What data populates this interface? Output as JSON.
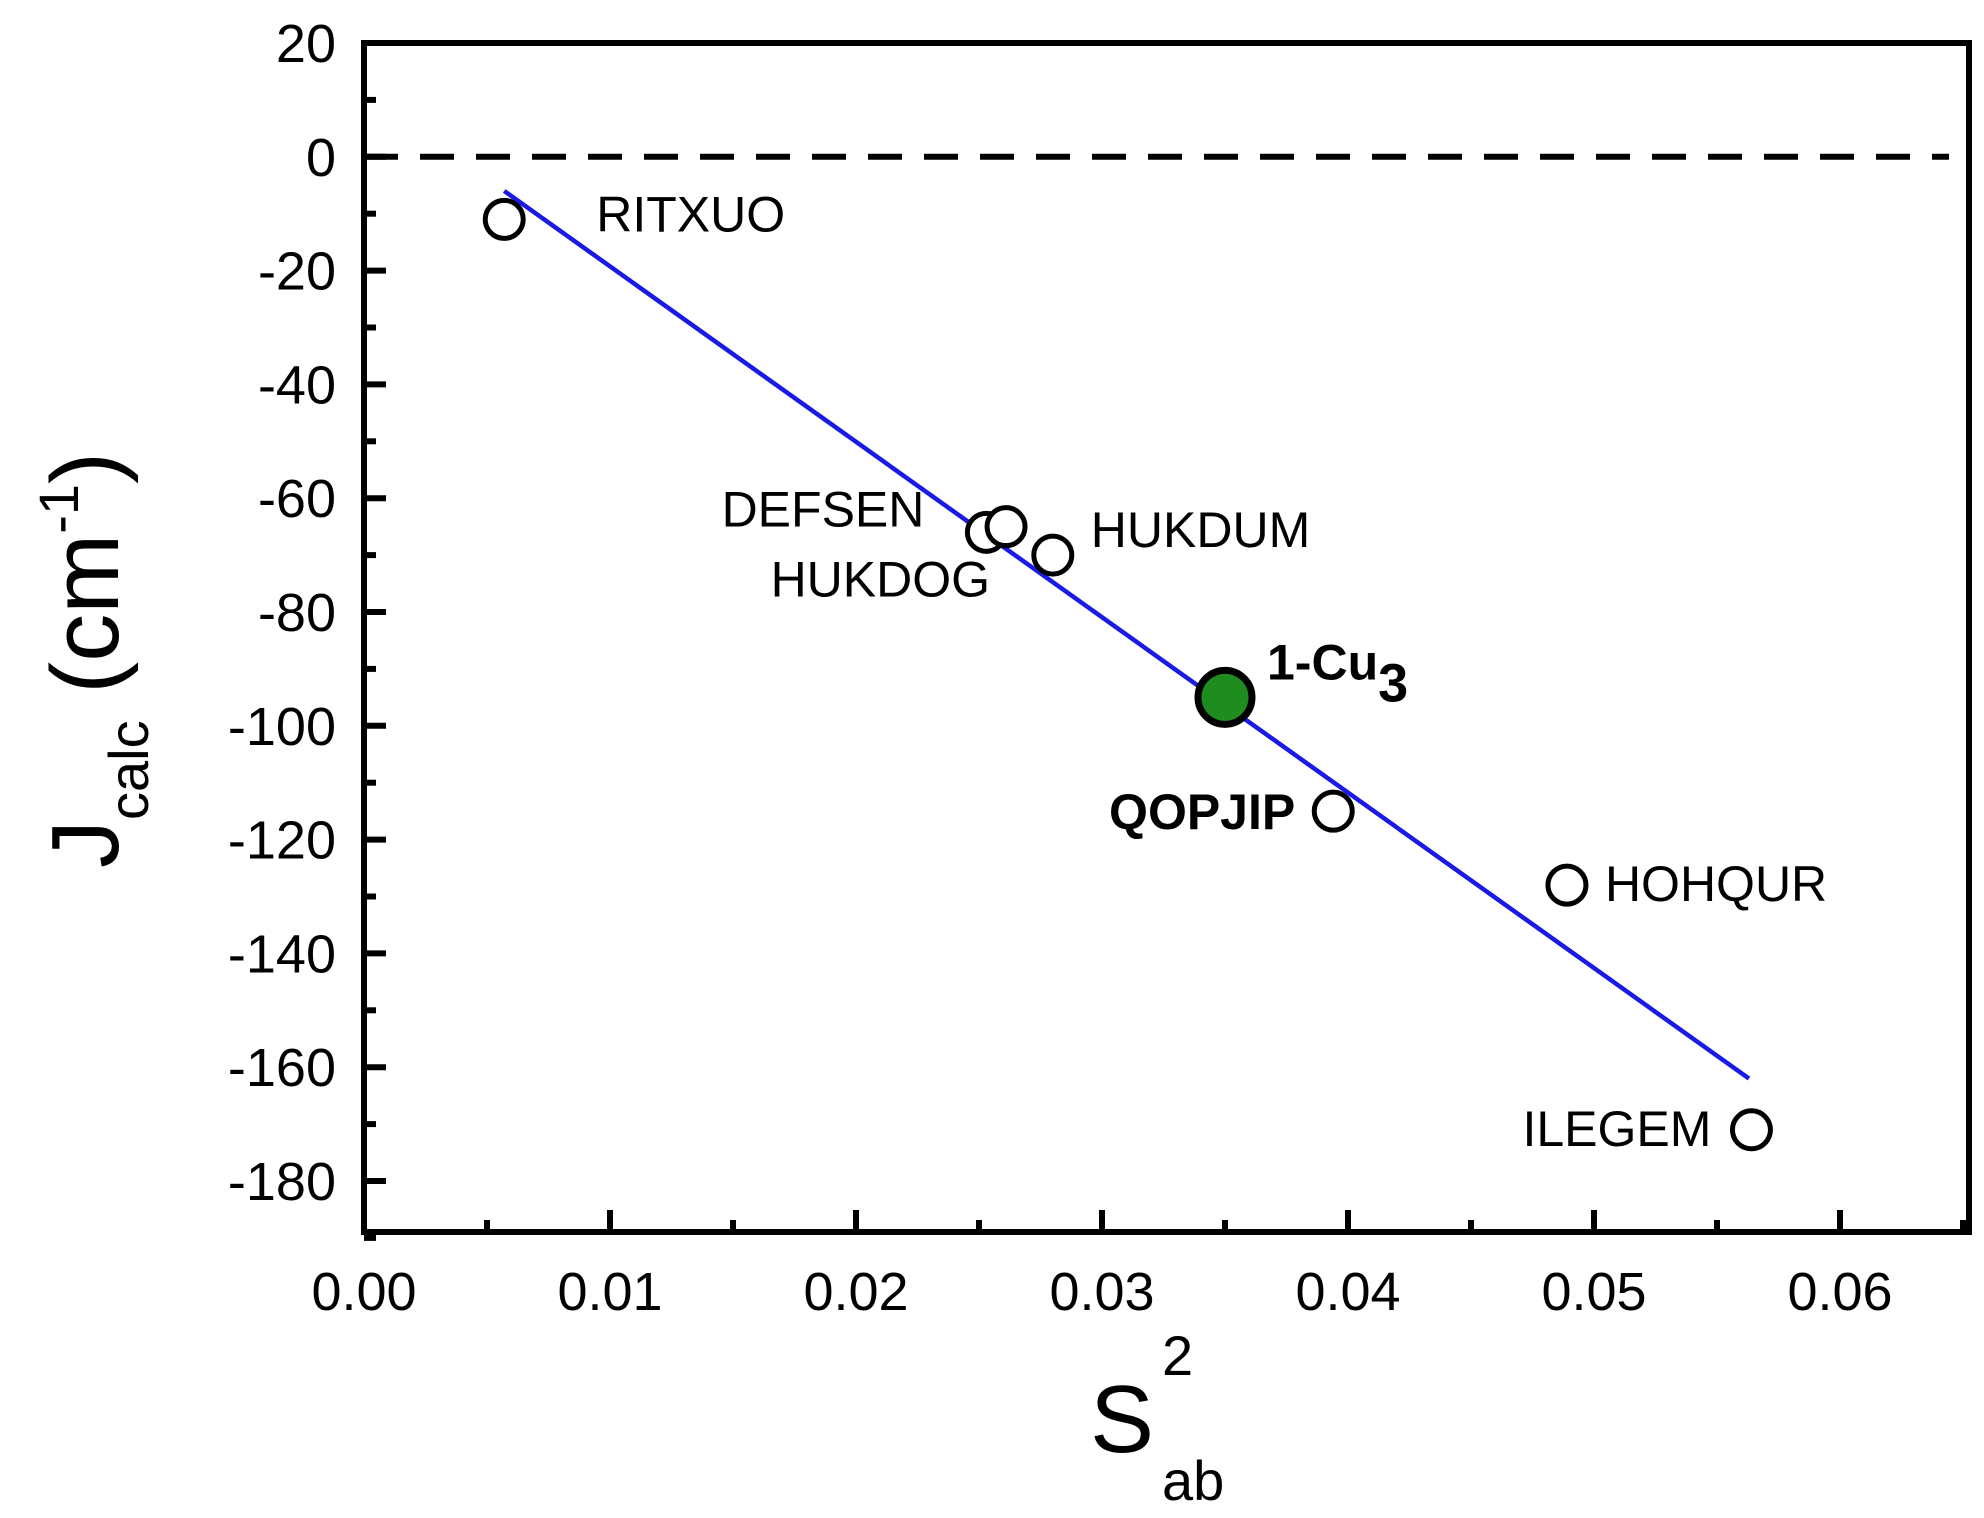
{
  "chart_data": {
    "type": "scatter",
    "title": "",
    "xlabel": {
      "main": "S",
      "sup": "2",
      "sub": "ab"
    },
    "ylabel": {
      "main": "J",
      "sub": "calc",
      "unit_open": " (cm",
      "unit_sup": "-1",
      "unit_close": ")"
    },
    "xlim": [
      0.0,
      0.065
    ],
    "ylim": [
      -190,
      20
    ],
    "x_ticks": [
      0.0,
      0.01,
      0.02,
      0.03,
      0.04,
      0.05,
      0.06
    ],
    "x_tick_labels": [
      "0.00",
      "0.01",
      "0.02",
      "0.03",
      "0.04",
      "0.05",
      "0.06"
    ],
    "y_ticks": [
      20,
      0,
      -20,
      -40,
      -60,
      -80,
      -100,
      -120,
      -140,
      -160,
      -180
    ],
    "y_tick_labels": [
      "20",
      "0",
      "-20",
      "-40",
      "-60",
      "-80",
      "-100",
      "-120",
      "-140",
      "-160",
      "-180"
    ],
    "grid": false,
    "points": [
      {
        "label": "RITXUO",
        "x": 0.0057,
        "y": -11,
        "style": "open"
      },
      {
        "label": "DEFSEN",
        "x": 0.0253,
        "y": -66,
        "style": "open"
      },
      {
        "label": "HUKDOG",
        "x": 0.0261,
        "y": -65,
        "style": "open"
      },
      {
        "label": "HUKDUM",
        "x": 0.028,
        "y": -70,
        "style": "open"
      },
      {
        "label": "1-Cu",
        "label_sub": "3",
        "x": 0.035,
        "y": -95,
        "style": "filled",
        "color": "#1e8c1e"
      },
      {
        "label": "QOPJIP",
        "x": 0.0394,
        "y": -115,
        "style": "open",
        "label_color": "#b31fe0"
      },
      {
        "label": "HOHQUR",
        "x": 0.0489,
        "y": -128,
        "style": "open"
      },
      {
        "label": "ILEGEM",
        "x": 0.0564,
        "y": -171,
        "style": "open"
      }
    ],
    "fit_line": {
      "x": [
        0.0057,
        0.0563
      ],
      "y": [
        -6,
        -162
      ],
      "color": "#1a1ae6"
    },
    "reference_line": {
      "y": 0,
      "style": "dashed",
      "color": "#000000"
    }
  }
}
